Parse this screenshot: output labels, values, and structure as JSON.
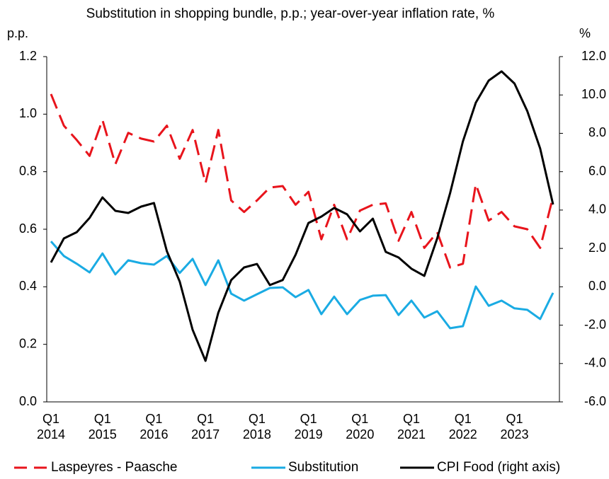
{
  "chart_data": {
    "type": "line",
    "title": "Substitution in shopping bundle, p.p.; year-over-year inflation rate, %",
    "ylabel": "p.p.",
    "y2label": "%",
    "categories": [
      "Q1 2014",
      null,
      null,
      null,
      "Q1 2015",
      null,
      null,
      null,
      "Q1 2016",
      null,
      null,
      null,
      "Q1 2017",
      null,
      null,
      null,
      "Q1 2018",
      null,
      null,
      null,
      "Q1 2019",
      null,
      null,
      null,
      "Q1 2020",
      null,
      null,
      null,
      "Q1 2021",
      null,
      null,
      null,
      "Q1 2022",
      null,
      null,
      null,
      "Q1 2023",
      null,
      null,
      null
    ],
    "series": [
      {
        "name": "Laspeyres - Paasche",
        "color": "#e8141c",
        "dashed": true,
        "values": [
          1.07,
          0.96,
          0.91,
          0.855,
          0.98,
          0.826,
          0.935,
          0.915,
          0.905,
          0.96,
          0.845,
          0.945,
          0.76,
          0.945,
          0.7,
          0.66,
          0.7,
          0.745,
          0.75,
          0.685,
          0.73,
          0.565,
          0.685,
          0.565,
          0.665,
          0.685,
          0.69,
          0.56,
          0.66,
          0.535,
          0.59,
          0.467,
          0.48,
          0.757,
          0.63,
          0.66,
          0.61,
          0.6,
          0.535,
          0.713
        ]
      },
      {
        "name": "Substitution",
        "color": "#1aabe3",
        "values": [
          0.558,
          0.507,
          0.48,
          0.45,
          0.516,
          0.443,
          0.492,
          0.482,
          0.477,
          0.507,
          0.448,
          0.497,
          0.406,
          0.492,
          0.376,
          0.352,
          0.374,
          0.396,
          0.398,
          0.364,
          0.389,
          0.305,
          0.366,
          0.305,
          0.354,
          0.369,
          0.371,
          0.302,
          0.352,
          0.293,
          0.315,
          0.256,
          0.263,
          0.401,
          0.334,
          0.352,
          0.325,
          0.32,
          0.288,
          0.379
        ]
      },
      {
        "name": "CPI Food (right axis)",
        "color": "#000000",
        "axis": "y2",
        "values": [
          1.27,
          2.52,
          2.85,
          3.59,
          4.66,
          3.96,
          3.85,
          4.18,
          4.37,
          1.86,
          0.27,
          -2.24,
          -3.86,
          -1.35,
          0.35,
          1.01,
          1.19,
          0.09,
          0.35,
          1.67,
          3.33,
          3.66,
          4.11,
          3.78,
          2.89,
          3.55,
          1.82,
          1.53,
          0.94,
          0.57,
          2.52,
          4.88,
          7.58,
          9.6,
          10.75,
          11.23,
          10.6,
          9.16,
          7.21,
          4.29
        ]
      }
    ],
    "ylim": [
      0,
      1.2
    ],
    "yticks": [
      {
        "value": 0,
        "label": "0.0"
      },
      0.2,
      0.4,
      0.6,
      0.8,
      {
        "value": 1,
        "label": "1.0"
      },
      1.2
    ],
    "y2lim": [
      -6,
      12
    ],
    "y2ticks": [
      {
        "value": -6,
        "label": "-6.0"
      },
      {
        "value": -4,
        "label": "-4.0"
      },
      {
        "value": -2,
        "label": "-2.0"
      },
      {
        "value": 0,
        "label": "0.0"
      },
      {
        "value": 2,
        "label": "2.0"
      },
      {
        "value": 4,
        "label": "4.0"
      },
      {
        "value": 6,
        "label": "6.0"
      },
      {
        "value": 8,
        "label": "8.0"
      },
      {
        "value": 10,
        "label": "10.0"
      },
      {
        "value": 12,
        "label": "12.0"
      }
    ],
    "legend": "bottom",
    "grid": false
  }
}
